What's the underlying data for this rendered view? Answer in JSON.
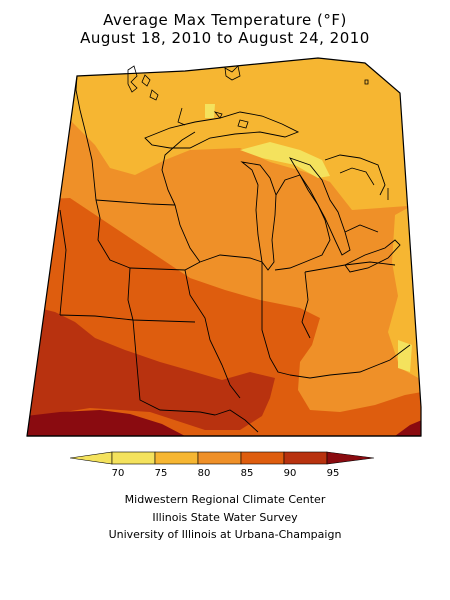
{
  "title": {
    "line1": "Average Max Temperature (°F)",
    "line2": "August 18, 2010 to August 24, 2010"
  },
  "map": {
    "region": "Midwest United States",
    "colors": {
      "band_70_75": "#f4e25d",
      "band_75_80": "#f6b632",
      "band_80_85": "#ef9028",
      "band_85_90": "#de5d0e",
      "band_90_95": "#b8320f",
      "band_95_up": "#8a0b10",
      "frame": "#000000"
    }
  },
  "legend": {
    "ticks": [
      "70",
      "75",
      "80",
      "85",
      "90",
      "95"
    ],
    "colors": [
      "#f4e25d",
      "#f6b632",
      "#ef9028",
      "#de5d0e",
      "#b8320f"
    ],
    "low_end_color": "#f4e25d",
    "high_end_color": "#8a0b10"
  },
  "credits": {
    "line1": "Midwestern Regional Climate Center",
    "line2": "Illinois State Water Survey",
    "line3": "University of Illinois at Urbana-Champaign"
  }
}
